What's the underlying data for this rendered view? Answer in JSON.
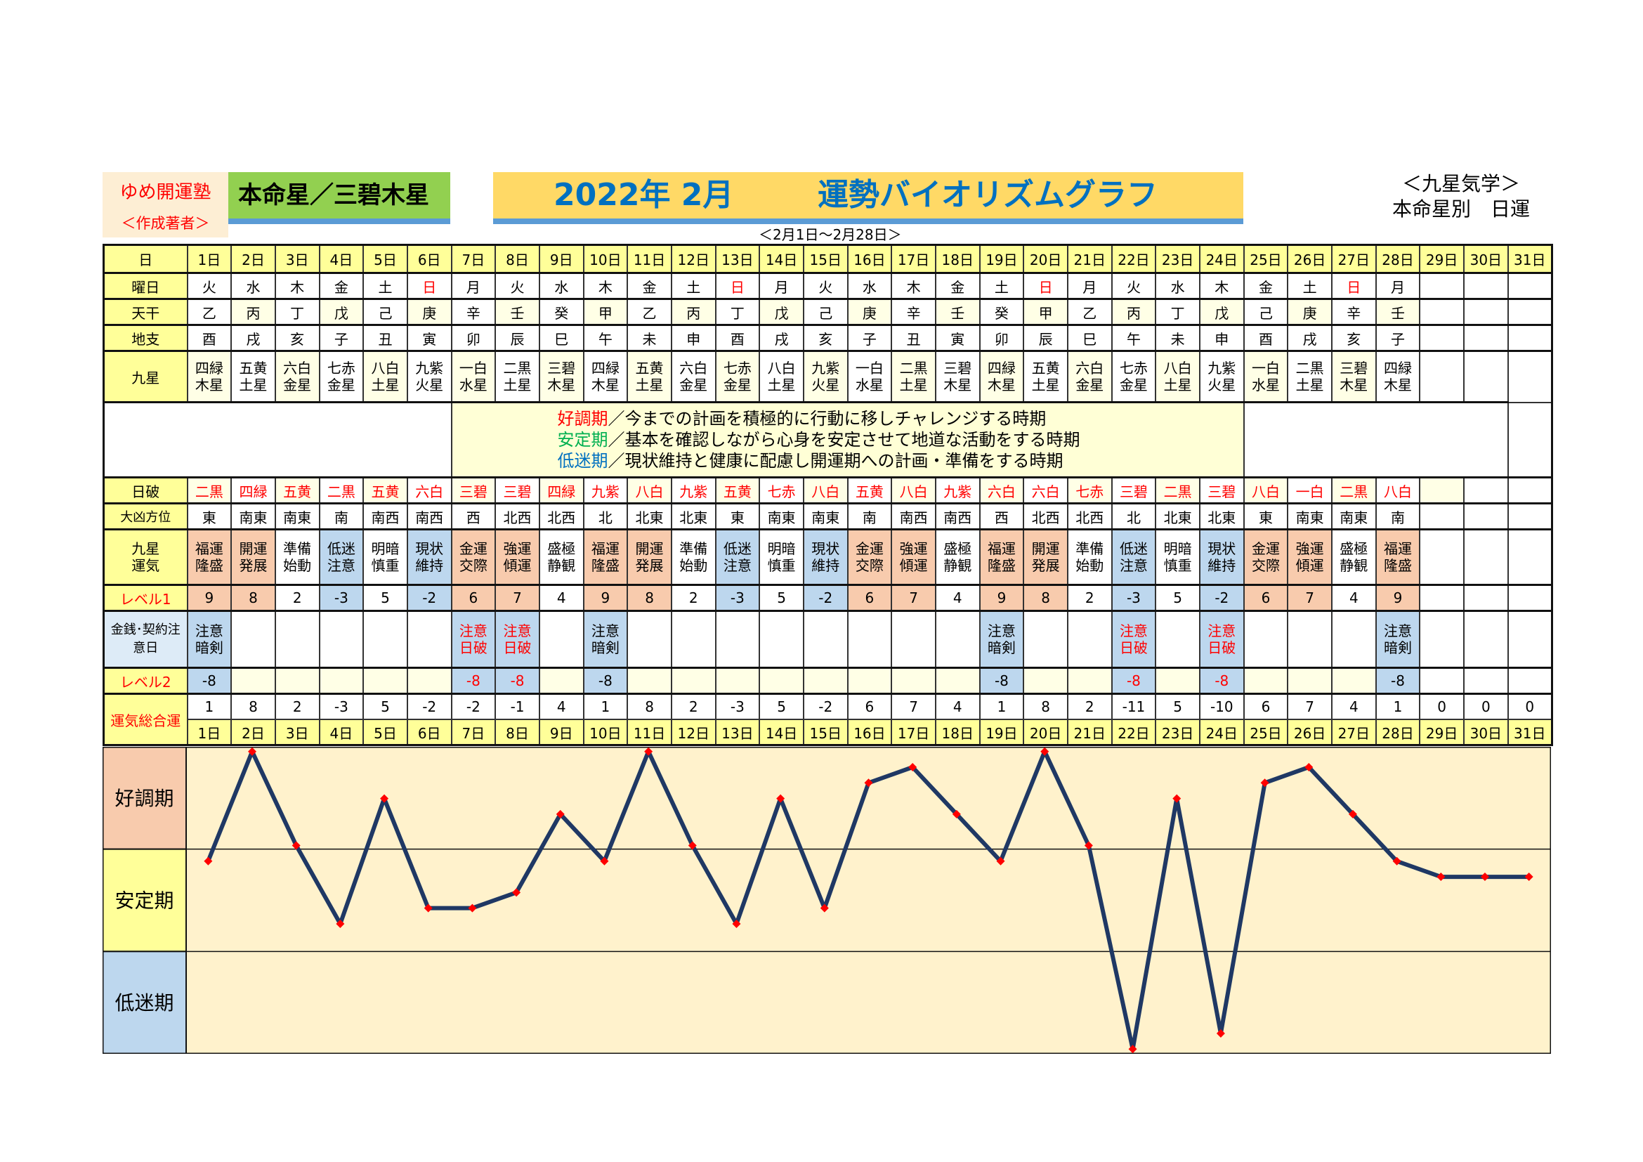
{
  "header": {
    "brand": "ゆめ開運塾",
    "author": "＜作成著者＞",
    "star_title": "本命星／三碧木星",
    "title_date": "2022年 2月",
    "title_main": "運勢バイオリズムグラフ",
    "range": "＜2月1日～2月28日＞",
    "right_line1": "＜九星気学＞",
    "right_line2": "本命星別　日運"
  },
  "row_labels": {
    "day": "日",
    "weekday": "曜日",
    "kan": "天干",
    "shi": "地支",
    "star": "九星",
    "nippa": "日破",
    "houi": "大凶方位",
    "unki": "九星運気",
    "level1": "レベル1",
    "money": "金銭･契約注意日",
    "level2": "レベル2",
    "total": "運気総合運"
  },
  "legend": [
    {
      "term": "好調期",
      "text": "／今までの計画を積極的に行動に移しチャレンジする時期",
      "color": "#ff0000"
    },
    {
      "term": "安定期",
      "text": "／基本を確認しながら心身を安定させて地道な活動をする時期",
      "color": "#00b050"
    },
    {
      "term": "低迷期",
      "text": "／現状維持と健康に配慮し開運期への計画・準備をする時期",
      "color": "#0070c0"
    }
  ],
  "days": [
    {
      "label": "1日",
      "wd": "火",
      "kan": "乙",
      "shi": "酉",
      "star": "四緑木星",
      "nippa": "二黒",
      "houi": "東",
      "unki": "福運隆盛",
      "l1": "9",
      "money": "注意暗剣",
      "l2": "-8",
      "total": "1"
    },
    {
      "label": "2日",
      "wd": "水",
      "kan": "丙",
      "shi": "戌",
      "star": "五黄土星",
      "nippa": "四緑",
      "houi": "南東",
      "unki": "開運発展",
      "l1": "8",
      "money": "",
      "l2": "",
      "total": "8"
    },
    {
      "label": "3日",
      "wd": "木",
      "kan": "丁",
      "shi": "亥",
      "star": "六白金星",
      "nippa": "五黄",
      "houi": "南東",
      "unki": "準備始動",
      "l1": "2",
      "money": "",
      "l2": "",
      "total": "2"
    },
    {
      "label": "4日",
      "wd": "金",
      "kan": "戊",
      "shi": "子",
      "star": "七赤金星",
      "nippa": "二黒",
      "houi": "南",
      "unki": "低迷注意",
      "l1": "-3",
      "money": "",
      "l2": "",
      "total": "-3"
    },
    {
      "label": "5日",
      "wd": "土",
      "kan": "己",
      "shi": "丑",
      "star": "八白土星",
      "nippa": "五黄",
      "houi": "南西",
      "unki": "明暗慎重",
      "l1": "5",
      "money": "",
      "l2": "",
      "total": "5"
    },
    {
      "label": "6日",
      "wd": "日",
      "kan": "庚",
      "shi": "寅",
      "star": "九紫火星",
      "nippa": "六白",
      "houi": "南西",
      "unki": "現状維持",
      "l1": "-2",
      "money": "",
      "l2": "",
      "total": "-2"
    },
    {
      "label": "7日",
      "wd": "月",
      "kan": "辛",
      "shi": "卯",
      "star": "一白水星",
      "nippa": "三碧",
      "houi": "西",
      "unki": "金運交際",
      "l1": "6",
      "money": "注意日破",
      "l2": "-8",
      "total": "-2"
    },
    {
      "label": "8日",
      "wd": "火",
      "kan": "壬",
      "shi": "辰",
      "star": "二黒土星",
      "nippa": "三碧",
      "houi": "北西",
      "unki": "強運傾運",
      "l1": "7",
      "money": "注意日破",
      "l2": "-8",
      "total": "-1"
    },
    {
      "label": "9日",
      "wd": "水",
      "kan": "癸",
      "shi": "巳",
      "star": "三碧木星",
      "nippa": "四緑",
      "houi": "北西",
      "unki": "盛極静観",
      "l1": "4",
      "money": "",
      "l2": "",
      "total": "4"
    },
    {
      "label": "10日",
      "wd": "木",
      "kan": "甲",
      "shi": "午",
      "star": "四緑木星",
      "nippa": "九紫",
      "houi": "北",
      "unki": "福運隆盛",
      "l1": "9",
      "money": "注意暗剣",
      "l2": "-8",
      "total": "1"
    },
    {
      "label": "11日",
      "wd": "金",
      "kan": "乙",
      "shi": "未",
      "star": "五黄土星",
      "nippa": "八白",
      "houi": "北東",
      "unki": "開運発展",
      "l1": "8",
      "money": "",
      "l2": "",
      "total": "8"
    },
    {
      "label": "12日",
      "wd": "土",
      "kan": "丙",
      "shi": "申",
      "star": "六白金星",
      "nippa": "九紫",
      "houi": "北東",
      "unki": "準備始動",
      "l1": "2",
      "money": "",
      "l2": "",
      "total": "2"
    },
    {
      "label": "13日",
      "wd": "日",
      "kan": "丁",
      "shi": "酉",
      "star": "七赤金星",
      "nippa": "五黄",
      "houi": "東",
      "unki": "低迷注意",
      "l1": "-3",
      "money": "",
      "l2": "",
      "total": "-3"
    },
    {
      "label": "14日",
      "wd": "月",
      "kan": "戊",
      "shi": "戌",
      "star": "八白土星",
      "nippa": "七赤",
      "houi": "南東",
      "unki": "明暗慎重",
      "l1": "5",
      "money": "",
      "l2": "",
      "total": "5"
    },
    {
      "label": "15日",
      "wd": "火",
      "kan": "己",
      "shi": "亥",
      "star": "九紫火星",
      "nippa": "八白",
      "houi": "南東",
      "unki": "現状維持",
      "l1": "-2",
      "money": "",
      "l2": "",
      "total": "-2"
    },
    {
      "label": "16日",
      "wd": "水",
      "kan": "庚",
      "shi": "子",
      "star": "一白水星",
      "nippa": "五黄",
      "houi": "南",
      "unki": "金運交際",
      "l1": "6",
      "money": "",
      "l2": "",
      "total": "6"
    },
    {
      "label": "17日",
      "wd": "木",
      "kan": "辛",
      "shi": "丑",
      "star": "二黒土星",
      "nippa": "八白",
      "houi": "南西",
      "unki": "強運傾運",
      "l1": "7",
      "money": "",
      "l2": "",
      "total": "7"
    },
    {
      "label": "18日",
      "wd": "金",
      "kan": "壬",
      "shi": "寅",
      "star": "三碧木星",
      "nippa": "九紫",
      "houi": "南西",
      "unki": "盛極静観",
      "l1": "4",
      "money": "",
      "l2": "",
      "total": "4"
    },
    {
      "label": "19日",
      "wd": "土",
      "kan": "癸",
      "shi": "卯",
      "star": "四緑木星",
      "nippa": "六白",
      "houi": "西",
      "unki": "福運隆盛",
      "l1": "9",
      "money": "注意暗剣",
      "l2": "-8",
      "total": "1"
    },
    {
      "label": "20日",
      "wd": "日",
      "kan": "甲",
      "shi": "辰",
      "star": "五黄土星",
      "nippa": "六白",
      "houi": "北西",
      "unki": "開運発展",
      "l1": "8",
      "money": "",
      "l2": "",
      "total": "8"
    },
    {
      "label": "21日",
      "wd": "月",
      "kan": "乙",
      "shi": "巳",
      "star": "六白金星",
      "nippa": "七赤",
      "houi": "北西",
      "unki": "準備始動",
      "l1": "2",
      "money": "",
      "l2": "",
      "total": "2"
    },
    {
      "label": "22日",
      "wd": "火",
      "kan": "丙",
      "shi": "午",
      "star": "七赤金星",
      "nippa": "三碧",
      "houi": "北",
      "unki": "低迷注意",
      "l1": "-3",
      "money": "注意日破",
      "l2": "-8",
      "total": "-11"
    },
    {
      "label": "23日",
      "wd": "水",
      "kan": "丁",
      "shi": "未",
      "star": "八白土星",
      "nippa": "二黒",
      "houi": "北東",
      "unki": "明暗慎重",
      "l1": "5",
      "money": "",
      "l2": "",
      "total": "5"
    },
    {
      "label": "24日",
      "wd": "木",
      "kan": "戊",
      "shi": "申",
      "star": "九紫火星",
      "nippa": "三碧",
      "houi": "北東",
      "unki": "現状維持",
      "l1": "-2",
      "money": "注意日破",
      "l2": "-8",
      "total": "-10"
    },
    {
      "label": "25日",
      "wd": "金",
      "kan": "己",
      "shi": "酉",
      "star": "一白水星",
      "nippa": "八白",
      "houi": "東",
      "unki": "金運交際",
      "l1": "6",
      "money": "",
      "l2": "",
      "total": "6"
    },
    {
      "label": "26日",
      "wd": "土",
      "kan": "庚",
      "shi": "戌",
      "star": "二黒土星",
      "nippa": "一白",
      "houi": "南東",
      "unki": "強運傾運",
      "l1": "7",
      "money": "",
      "l2": "",
      "total": "7"
    },
    {
      "label": "27日",
      "wd": "日",
      "kan": "辛",
      "shi": "亥",
      "star": "三碧木星",
      "nippa": "二黒",
      "houi": "南東",
      "unki": "盛極静観",
      "l1": "4",
      "money": "",
      "l2": "",
      "total": "4"
    },
    {
      "label": "28日",
      "wd": "月",
      "kan": "壬",
      "shi": "子",
      "star": "四緑木星",
      "nippa": "八白",
      "houi": "南",
      "unki": "福運隆盛",
      "l1": "9",
      "money": "注意暗剣",
      "l2": "-8",
      "total": "1"
    },
    {
      "label": "29日",
      "wd": "",
      "kan": "",
      "shi": "",
      "star": "",
      "nippa": "",
      "houi": "",
      "unki": "",
      "l1": "",
      "money": "",
      "l2": "",
      "total": "0"
    },
    {
      "label": "30日",
      "wd": "",
      "kan": "",
      "shi": "",
      "star": "",
      "nippa": "",
      "houi": "",
      "unki": "",
      "l1": "",
      "money": "",
      "l2": "",
      "total": "0"
    },
    {
      "label": "31日",
      "wd": "",
      "kan": "",
      "shi": "",
      "star": "",
      "nippa": "",
      "houi": "",
      "unki": "",
      "l1": "",
      "money": "",
      "l2": "",
      "total": "0"
    }
  ],
  "colors": {
    "good": "#f8cbad",
    "stable": "#ffff99",
    "low": "#bdd7ee",
    "line": "#1f3864",
    "marker": "#ff0000",
    "plot_bg": "#fff2cc"
  },
  "chart_data": {
    "type": "line",
    "x": [
      1,
      2,
      3,
      4,
      5,
      6,
      7,
      8,
      9,
      10,
      11,
      12,
      13,
      14,
      15,
      16,
      17,
      18,
      19,
      20,
      21,
      22,
      23,
      24,
      25,
      26,
      27,
      28,
      29,
      30,
      31
    ],
    "values": [
      1,
      8,
      2,
      -3,
      5,
      -2,
      -2,
      -1,
      4,
      1,
      8,
      2,
      -3,
      5,
      -2,
      6,
      7,
      4,
      1,
      8,
      2,
      -11,
      5,
      -10,
      6,
      7,
      4,
      1,
      0,
      0,
      0
    ],
    "ylim": [
      -11.3,
      8.3
    ],
    "bands": [
      {
        "label": "好調期",
        "color": "#f8cbad"
      },
      {
        "label": "安定期",
        "color": "#ffff99"
      },
      {
        "label": "低迷期",
        "color": "#bdd7ee"
      }
    ],
    "grid": false
  }
}
